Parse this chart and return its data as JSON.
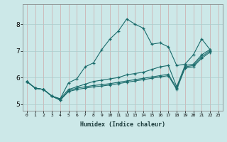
{
  "title": "",
  "xlabel": "Humidex (Indice chaleur)",
  "bg_color": "#cce8e8",
  "line_color": "#1a6b6b",
  "grid_color": "#aacccc",
  "xlim": [
    -0.5,
    23.5
  ],
  "ylim": [
    4.75,
    8.75
  ],
  "xticks": [
    0,
    1,
    2,
    3,
    4,
    5,
    6,
    7,
    8,
    9,
    10,
    11,
    12,
    13,
    14,
    15,
    16,
    17,
    18,
    19,
    20,
    21,
    22,
    23
  ],
  "yticks": [
    5,
    6,
    7,
    8
  ],
  "series": [
    {
      "x": [
        0,
        1,
        2,
        3,
        4,
        5,
        6,
        7,
        8,
        9,
        10,
        11,
        12,
        13,
        14,
        15,
        16,
        17,
        18,
        19,
        20,
        21,
        22
      ],
      "y": [
        5.85,
        5.6,
        5.55,
        5.3,
        5.2,
        5.8,
        5.95,
        6.4,
        6.55,
        7.05,
        7.45,
        7.75,
        8.2,
        8.0,
        7.85,
        7.25,
        7.3,
        7.15,
        6.45,
        6.5,
        6.85,
        7.45,
        7.05
      ]
    },
    {
      "x": [
        0,
        1,
        2,
        3,
        4,
        5,
        6,
        7,
        8,
        9,
        10,
        11,
        12,
        13,
        14,
        15,
        16,
        17,
        18,
        19,
        20,
        21,
        22
      ],
      "y": [
        5.85,
        5.6,
        5.55,
        5.3,
        5.2,
        5.55,
        5.65,
        5.75,
        5.85,
        5.9,
        5.95,
        6.0,
        6.1,
        6.15,
        6.2,
        6.3,
        6.4,
        6.45,
        5.65,
        6.45,
        6.5,
        6.85,
        7.05
      ]
    },
    {
      "x": [
        0,
        1,
        2,
        3,
        4,
        5,
        6,
        7,
        8,
        9,
        10,
        11,
        12,
        13,
        14,
        15,
        16,
        17,
        18,
        19,
        20,
        21,
        22
      ],
      "y": [
        5.85,
        5.6,
        5.55,
        5.3,
        5.15,
        5.5,
        5.6,
        5.65,
        5.7,
        5.73,
        5.77,
        5.82,
        5.87,
        5.92,
        5.97,
        6.02,
        6.07,
        6.12,
        5.6,
        6.4,
        6.45,
        6.78,
        7.0
      ]
    },
    {
      "x": [
        0,
        1,
        2,
        3,
        4,
        5,
        6,
        7,
        8,
        9,
        10,
        11,
        12,
        13,
        14,
        15,
        16,
        17,
        18,
        19,
        20,
        21,
        22
      ],
      "y": [
        5.85,
        5.6,
        5.55,
        5.3,
        5.15,
        5.47,
        5.55,
        5.6,
        5.65,
        5.68,
        5.72,
        5.77,
        5.82,
        5.87,
        5.92,
        5.97,
        6.02,
        6.07,
        5.55,
        6.35,
        6.4,
        6.72,
        6.95
      ]
    }
  ]
}
